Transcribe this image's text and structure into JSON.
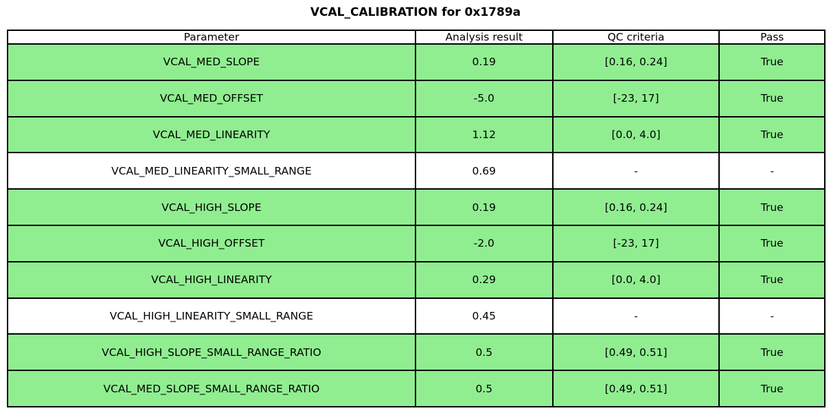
{
  "title": "VCAL_CALIBRATION for 0x1789a",
  "chart_data": {
    "type": "table",
    "title": "VCAL_CALIBRATION for 0x1789a",
    "columns": [
      "Parameter",
      "Analysis result",
      "QC criteria",
      "Pass"
    ],
    "rows": [
      {
        "parameter": "VCAL_MED_SLOPE",
        "result": "0.19",
        "qc_criteria": "[0.16, 0.24]",
        "pass": "True",
        "highlighted": true
      },
      {
        "parameter": "VCAL_MED_OFFSET",
        "result": "-5.0",
        "qc_criteria": "[-23, 17]",
        "pass": "True",
        "highlighted": true
      },
      {
        "parameter": "VCAL_MED_LINEARITY",
        "result": "1.12",
        "qc_criteria": "[0.0, 4.0]",
        "pass": "True",
        "highlighted": true
      },
      {
        "parameter": "VCAL_MED_LINEARITY_SMALL_RANGE",
        "result": "0.69",
        "qc_criteria": "-",
        "pass": "-",
        "highlighted": false
      },
      {
        "parameter": "VCAL_HIGH_SLOPE",
        "result": "0.19",
        "qc_criteria": "[0.16, 0.24]",
        "pass": "True",
        "highlighted": true
      },
      {
        "parameter": "VCAL_HIGH_OFFSET",
        "result": "-2.0",
        "qc_criteria": "[-23, 17]",
        "pass": "True",
        "highlighted": true
      },
      {
        "parameter": "VCAL_HIGH_LINEARITY",
        "result": "0.29",
        "qc_criteria": "[0.0, 4.0]",
        "pass": "True",
        "highlighted": true
      },
      {
        "parameter": "VCAL_HIGH_LINEARITY_SMALL_RANGE",
        "result": "0.45",
        "qc_criteria": "-",
        "pass": "-",
        "highlighted": false
      },
      {
        "parameter": "VCAL_HIGH_SLOPE_SMALL_RANGE_RATIO",
        "result": "0.5",
        "qc_criteria": "[0.49, 0.51]",
        "pass": "True",
        "highlighted": true
      },
      {
        "parameter": "VCAL_MED_SLOPE_SMALL_RANGE_RATIO",
        "result": "0.5",
        "qc_criteria": "[0.49, 0.51]",
        "pass": "True",
        "highlighted": true
      }
    ]
  },
  "colors": {
    "pass_row_green": "#90ee90",
    "row_white": "#ffffff",
    "border_black": "#000000"
  }
}
